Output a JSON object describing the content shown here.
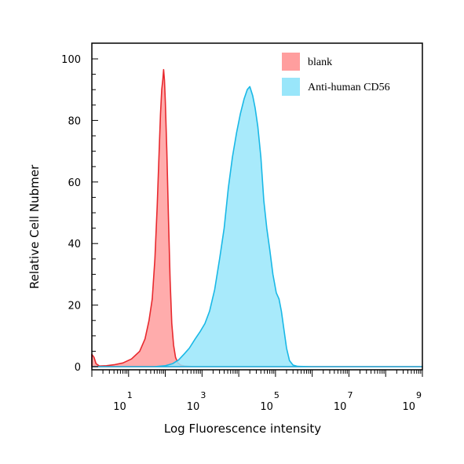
{
  "chart_data": {
    "type": "area",
    "xlabel": "Log Fluorescence intensity",
    "ylabel": "Relative Cell Nubmer",
    "xscale": "log",
    "xlim": [
      1,
      1000000000
    ],
    "ylim": [
      0,
      100
    ],
    "x_ticks": [
      {
        "base": "10",
        "exp": "1",
        "value": 10
      },
      {
        "base": "10",
        "exp": "3",
        "value": 1000
      },
      {
        "base": "10",
        "exp": "5",
        "value": 100000
      },
      {
        "base": "10",
        "exp": "7",
        "value": 10000000
      },
      {
        "base": "10",
        "exp": "9",
        "value": 1000000000
      }
    ],
    "y_ticks": [
      {
        "label": "0",
        "value": 0
      },
      {
        "label": "20",
        "value": 20
      },
      {
        "label": "40",
        "value": 40
      },
      {
        "label": "60",
        "value": 60
      },
      {
        "label": "80",
        "value": 80
      },
      {
        "label": "100",
        "value": 100
      }
    ],
    "legend_position": "top-right",
    "series": [
      {
        "name": "blank",
        "color": "#ff9e9e",
        "stroke": "#e8292e",
        "points": [
          [
            1,
            4
          ],
          [
            1.15,
            3
          ],
          [
            1.3,
            1
          ],
          [
            1.6,
            0.2
          ],
          [
            2.5,
            0.3
          ],
          [
            4,
            0.6
          ],
          [
            7,
            1.2
          ],
          [
            12,
            2.5
          ],
          [
            20,
            5
          ],
          [
            28,
            9
          ],
          [
            36,
            15
          ],
          [
            44,
            22
          ],
          [
            52,
            35
          ],
          [
            60,
            52
          ],
          [
            68,
            70
          ],
          [
            74,
            82
          ],
          [
            80,
            90
          ],
          [
            85,
            93
          ],
          [
            90,
            96.5
          ],
          [
            95,
            93
          ],
          [
            100,
            86
          ],
          [
            110,
            70
          ],
          [
            122,
            48
          ],
          [
            135,
            28
          ],
          [
            150,
            14
          ],
          [
            168,
            7
          ],
          [
            190,
            3
          ],
          [
            220,
            1.2
          ],
          [
            260,
            0.5
          ],
          [
            330,
            0.2
          ],
          [
            600,
            0
          ],
          [
            1000000000,
            0
          ]
        ]
      },
      {
        "name": "Anti-human CD56",
        "color": "#99e6fa",
        "stroke": "#19b8e6",
        "points": [
          [
            1,
            0
          ],
          [
            50,
            0
          ],
          [
            100,
            0.3
          ],
          [
            160,
            1
          ],
          [
            230,
            2.2
          ],
          [
            320,
            4
          ],
          [
            450,
            6
          ],
          [
            650,
            9
          ],
          [
            900,
            11.5
          ],
          [
            1200,
            14
          ],
          [
            1600,
            18
          ],
          [
            2200,
            25
          ],
          [
            3000,
            35
          ],
          [
            4000,
            45
          ],
          [
            5200,
            58
          ],
          [
            6700,
            68
          ],
          [
            8700,
            76
          ],
          [
            11000,
            82
          ],
          [
            14000,
            87
          ],
          [
            17000,
            90
          ],
          [
            20000,
            91
          ],
          [
            24000,
            88
          ],
          [
            28000,
            84
          ],
          [
            33000,
            78
          ],
          [
            40000,
            68
          ],
          [
            48000,
            54
          ],
          [
            58000,
            45
          ],
          [
            70000,
            38
          ],
          [
            85000,
            30
          ],
          [
            105000,
            24
          ],
          [
            125000,
            22
          ],
          [
            145000,
            18
          ],
          [
            170000,
            12
          ],
          [
            200000,
            6
          ],
          [
            240000,
            2
          ],
          [
            300000,
            0.5
          ],
          [
            400000,
            0.1
          ],
          [
            1000000,
            0
          ],
          [
            1000000000,
            0
          ]
        ]
      }
    ]
  }
}
